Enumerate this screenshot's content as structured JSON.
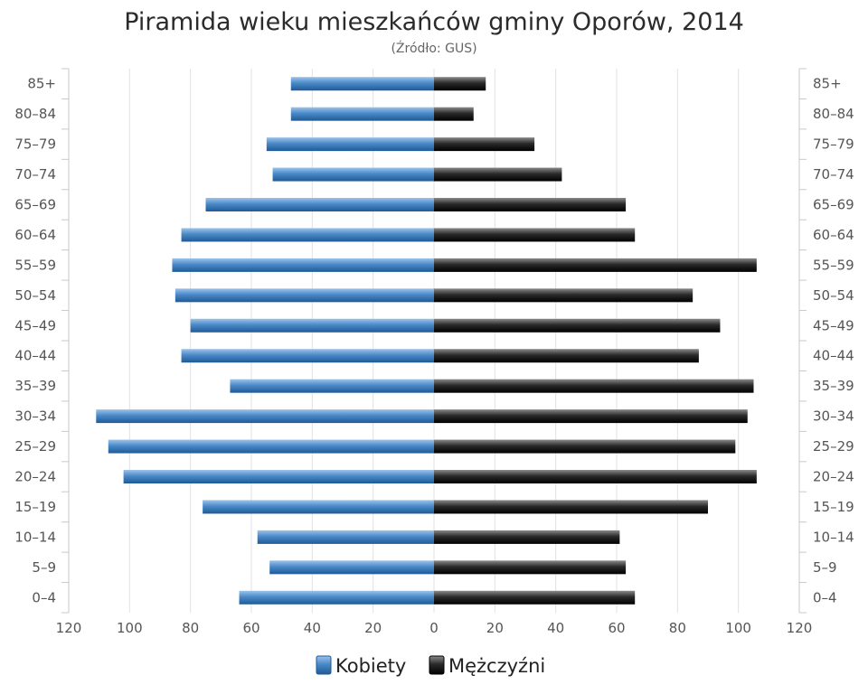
{
  "chart_data": {
    "type": "bar",
    "orientation": "horizontal",
    "layout": "population-pyramid",
    "title": "Piramida wieku mieszkańców gminy Oporów, 2014",
    "subtitle": "(Źródło: GUS)",
    "categories": [
      "0–4",
      "5–9",
      "10–14",
      "15–19",
      "20–24",
      "25–29",
      "30–34",
      "35–39",
      "40–44",
      "45–49",
      "50–54",
      "55–59",
      "60–64",
      "65–69",
      "70–74",
      "75–79",
      "80–84",
      "85+"
    ],
    "series": [
      {
        "name": "Kobiety",
        "side": "left",
        "color": "#3a78b8",
        "values": [
          64,
          54,
          58,
          76,
          102,
          107,
          111,
          67,
          83,
          80,
          85,
          86,
          83,
          75,
          53,
          55,
          47,
          47
        ]
      },
      {
        "name": "Mężczyźni",
        "side": "right",
        "color": "#111111",
        "values": [
          66,
          63,
          61,
          90,
          106,
          99,
          103,
          105,
          87,
          94,
          85,
          106,
          66,
          63,
          42,
          33,
          13,
          17
        ]
      }
    ],
    "xlim": [
      -120,
      120
    ],
    "x_ticks": [
      "120",
      "100",
      "80",
      "60",
      "40",
      "20",
      "0",
      "20",
      "40",
      "60",
      "80",
      "100",
      "120"
    ],
    "grid": "vertical",
    "legend": "bottom-center"
  }
}
